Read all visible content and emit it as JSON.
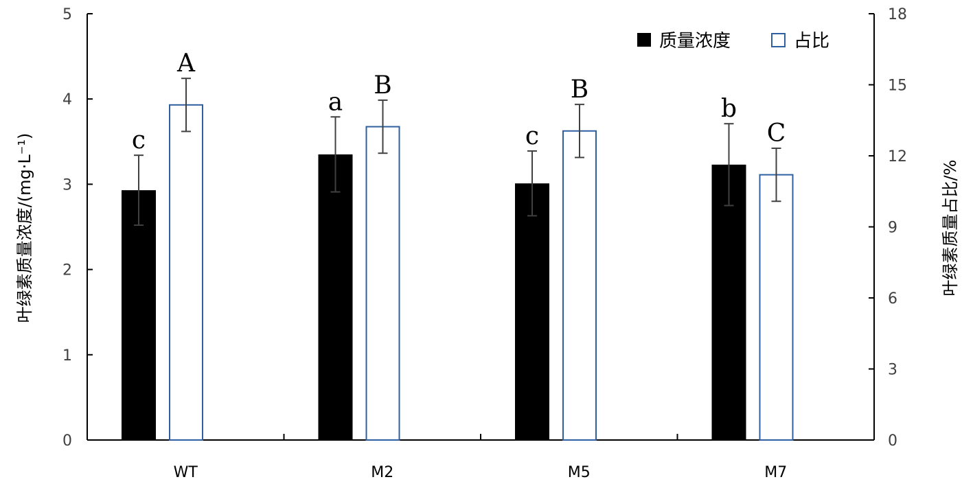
{
  "chart_data": {
    "type": "bar",
    "categories": [
      "WT",
      "M2",
      "M5",
      "M7"
    ],
    "series": [
      {
        "name": "质量浓度",
        "axis": "left",
        "fill": "#000000",
        "stroke": "#000000",
        "values": [
          2.93,
          3.35,
          3.01,
          3.23
        ],
        "errors": [
          0.41,
          0.44,
          0.38,
          0.48
        ],
        "letters": [
          "c",
          "a",
          "c",
          "b"
        ]
      },
      {
        "name": "占比",
        "axis": "right",
        "fill": "#ffffff",
        "stroke": "#2e5fa0",
        "values": [
          14.15,
          13.23,
          13.05,
          11.2
        ],
        "errors": [
          1.12,
          1.12,
          1.12,
          1.12
        ],
        "letters": [
          "A",
          "B",
          "B",
          "C"
        ]
      }
    ],
    "left_axis": {
      "label": "叶绿素质量浓度/(mg·L⁻¹)",
      "ylim": [
        0,
        5
      ],
      "ticks": [
        "0",
        "1",
        "2",
        "3",
        "4",
        "5"
      ]
    },
    "right_axis": {
      "label": "叶绿素质量占比/%",
      "ylim": [
        0,
        18
      ],
      "ticks": [
        "0",
        "3",
        "6",
        "9",
        "12",
        "15",
        "18"
      ]
    },
    "legend_position": "top-right",
    "grid": false
  }
}
